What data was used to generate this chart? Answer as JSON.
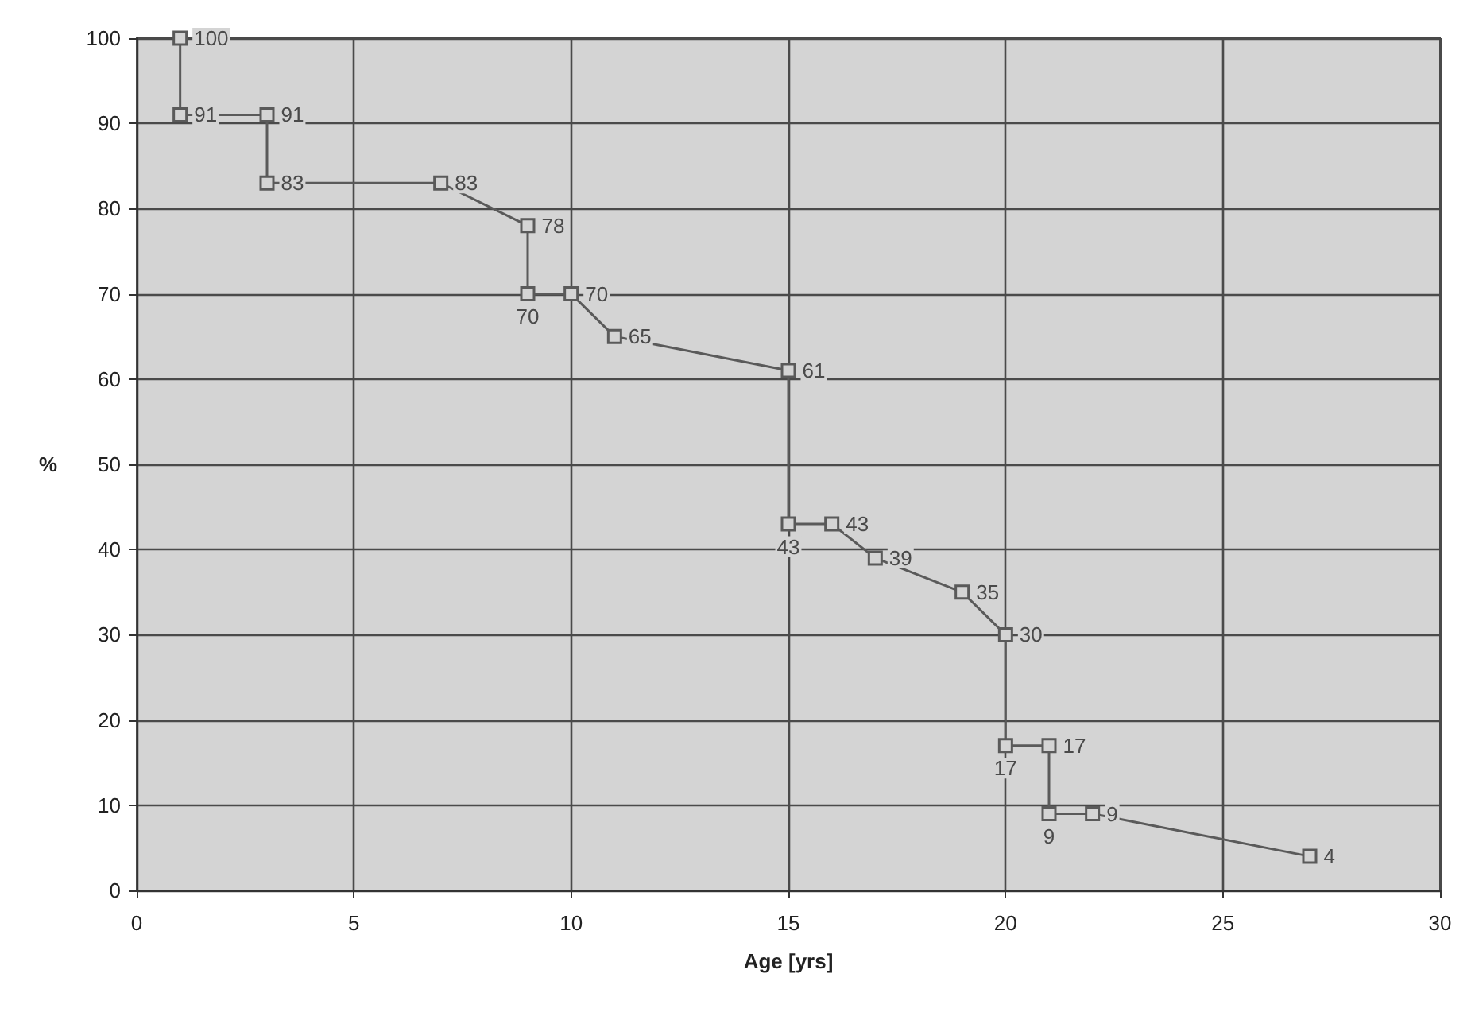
{
  "chart_data": {
    "type": "line",
    "xlabel": "Age [yrs]",
    "ylabel": "%",
    "x": [
      1,
      1,
      3,
      3,
      7,
      9,
      9,
      10,
      11,
      15,
      15,
      16,
      17,
      19,
      20,
      20,
      21,
      21,
      22,
      27
    ],
    "series": [
      {
        "color": "#5a5a5a",
        "values": [
          100,
          91,
          91,
          83,
          83,
          78,
          70,
          70,
          65,
          61,
          43,
          43,
          39,
          35,
          30,
          17,
          17,
          9,
          9,
          4
        ]
      }
    ],
    "xlim": [
      0,
      30
    ],
    "xticks": [
      0,
      5,
      10,
      15,
      20,
      25,
      30
    ],
    "ylim": [
      0,
      100
    ],
    "yticks": [
      0,
      10,
      20,
      30,
      40,
      50,
      60,
      70,
      80,
      90,
      100
    ],
    "grid": true,
    "marker": "square",
    "line_style": "solid",
    "data_labels": true
  }
}
